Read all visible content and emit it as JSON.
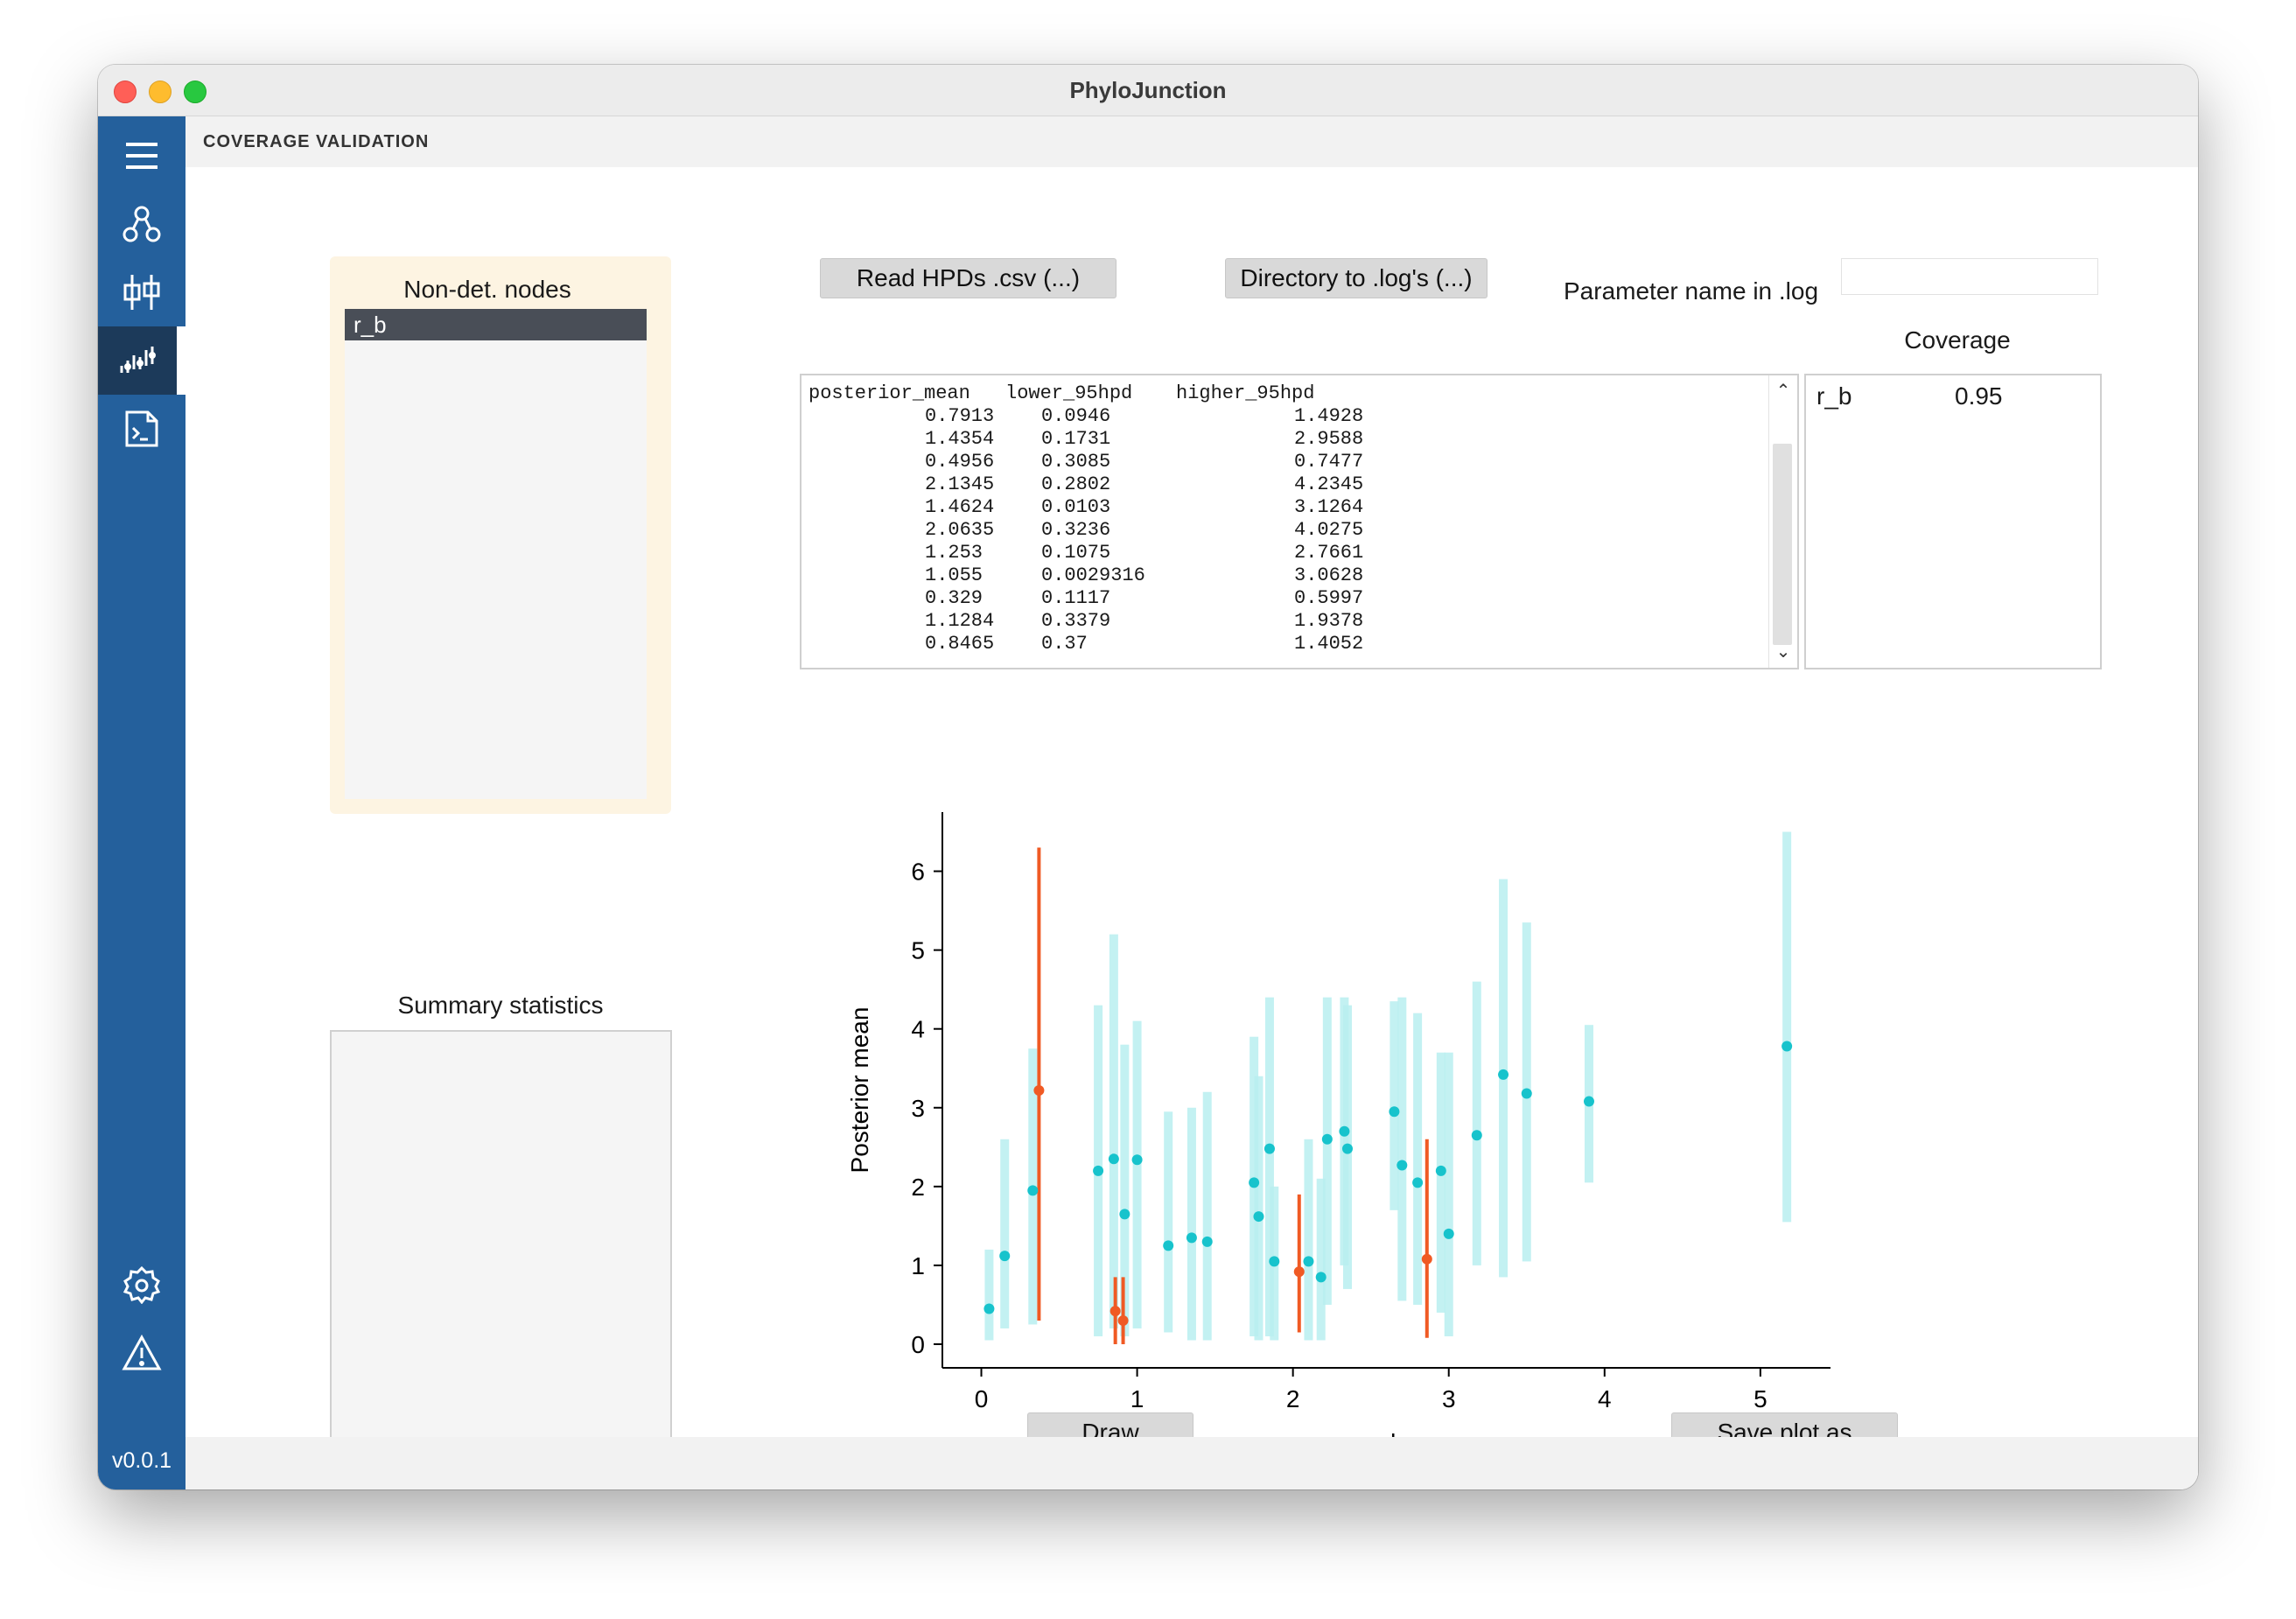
{
  "window": {
    "title": "PhyloJunction"
  },
  "sidebar": {
    "items": [
      {
        "icon": "menu-icon"
      },
      {
        "icon": "network-icon"
      },
      {
        "icon": "compare-icon"
      },
      {
        "icon": "coverage-chart-icon",
        "active": true
      },
      {
        "icon": "script-file-icon"
      }
    ],
    "bottom_items": [
      {
        "icon": "settings-gear-icon"
      },
      {
        "icon": "warning-icon"
      }
    ],
    "version": "v0.0.1"
  },
  "page": {
    "title": "COVERAGE VALIDATION"
  },
  "nodes_panel": {
    "title": "Non-det. nodes",
    "items": [
      "r_b"
    ],
    "selected": "r_b"
  },
  "summary": {
    "title": "Summary statistics"
  },
  "buttons": {
    "read_hpds": "Read HPDs .csv (...)",
    "directory_logs": "Directory to .log's (...)",
    "draw": "Draw",
    "save_plot": "Save plot as"
  },
  "param_field": {
    "label": "Parameter name in .log",
    "value": ""
  },
  "coverage": {
    "title": "Coverage",
    "rows": [
      {
        "name": "r_b",
        "value": "0.95"
      }
    ]
  },
  "hpd_table": {
    "columns": [
      "posterior_mean",
      "lower_95hpd",
      "higher_95hpd"
    ],
    "rows": [
      [
        "0.7913",
        "0.0946",
        "1.4928"
      ],
      [
        "1.4354",
        "0.1731",
        "2.9588"
      ],
      [
        "0.4956",
        "0.3085",
        "0.7477"
      ],
      [
        "2.1345",
        "0.2802",
        "4.2345"
      ],
      [
        "1.4624",
        "0.0103",
        "3.1264"
      ],
      [
        "2.0635",
        "0.3236",
        "4.0275"
      ],
      [
        "1.253",
        "0.1075",
        "2.7661"
      ],
      [
        "1.055",
        "0.0029316",
        "3.0628"
      ],
      [
        "0.329",
        "0.1117",
        "0.5997"
      ],
      [
        "1.1284",
        "0.3379",
        "1.9378"
      ],
      [
        "0.8465",
        "0.37",
        "1.4052"
      ]
    ]
  },
  "chart_data": {
    "type": "scatter",
    "xlabel": "r_b",
    "ylabel": "Posterior mean",
    "xlim": [
      -0.25,
      5.45
    ],
    "ylim": [
      -0.3,
      6.75
    ],
    "xticks": [
      0,
      1,
      2,
      3,
      4,
      5
    ],
    "yticks": [
      0,
      1,
      2,
      3,
      4,
      5,
      6
    ],
    "colors": {
      "covered": "#17c3cc",
      "covered_interval": "#b8eef0",
      "not_covered": "#f05a24"
    },
    "series": [
      {
        "points": [
          {
            "x": 5.17,
            "y": 3.78,
            "lo": 1.55,
            "hi": 6.5
          },
          {
            "x": 3.9,
            "y": 3.08,
            "lo": 2.05,
            "hi": 4.05
          },
          {
            "x": 3.5,
            "y": 3.18,
            "lo": 1.05,
            "hi": 5.35
          },
          {
            "x": 3.35,
            "y": 3.42,
            "lo": 0.85,
            "hi": 5.9
          },
          {
            "x": 3.18,
            "y": 2.65,
            "lo": 1.0,
            "hi": 4.6
          },
          {
            "x": 3.0,
            "y": 1.4,
            "lo": 0.1,
            "hi": 3.7
          },
          {
            "x": 2.95,
            "y": 2.2,
            "lo": 0.4,
            "hi": 3.7
          },
          {
            "x": 2.8,
            "y": 2.05,
            "lo": 0.5,
            "hi": 4.2
          },
          {
            "x": 2.7,
            "y": 2.27,
            "lo": 0.55,
            "hi": 4.4
          },
          {
            "x": 2.65,
            "y": 2.95,
            "lo": 1.7,
            "hi": 4.35
          },
          {
            "x": 2.35,
            "y": 2.48,
            "lo": 0.7,
            "hi": 4.3
          },
          {
            "x": 2.33,
            "y": 2.7,
            "lo": 1.0,
            "hi": 4.4
          },
          {
            "x": 2.22,
            "y": 2.6,
            "lo": 0.5,
            "hi": 4.4
          },
          {
            "x": 2.18,
            "y": 0.85,
            "lo": 0.05,
            "hi": 2.1
          },
          {
            "x": 2.1,
            "y": 1.05,
            "lo": 0.05,
            "hi": 2.6
          },
          {
            "x": 1.88,
            "y": 1.05,
            "lo": 0.05,
            "hi": 2.0
          },
          {
            "x": 1.85,
            "y": 2.48,
            "lo": 0.1,
            "hi": 4.4
          },
          {
            "x": 1.78,
            "y": 1.62,
            "lo": 0.05,
            "hi": 3.4
          },
          {
            "x": 1.75,
            "y": 2.05,
            "lo": 0.1,
            "hi": 3.9
          },
          {
            "x": 1.45,
            "y": 1.3,
            "lo": 0.05,
            "hi": 3.2
          },
          {
            "x": 1.35,
            "y": 1.35,
            "lo": 0.05,
            "hi": 3.0
          },
          {
            "x": 1.2,
            "y": 1.25,
            "lo": 0.15,
            "hi": 2.95
          },
          {
            "x": 1.0,
            "y": 2.34,
            "lo": 0.2,
            "hi": 4.1
          },
          {
            "x": 0.92,
            "y": 1.65,
            "lo": 0.1,
            "hi": 3.8
          },
          {
            "x": 0.85,
            "y": 2.35,
            "lo": 0.2,
            "hi": 5.2
          },
          {
            "x": 0.75,
            "y": 2.2,
            "lo": 0.1,
            "hi": 4.3
          },
          {
            "x": 0.33,
            "y": 1.95,
            "lo": 0.25,
            "hi": 3.75
          },
          {
            "x": 0.15,
            "y": 1.12,
            "lo": 0.2,
            "hi": 2.6
          },
          {
            "x": 0.05,
            "y": 0.45,
            "lo": 0.05,
            "hi": 1.2
          }
        ]
      },
      {
        "points": [
          {
            "x": 0.37,
            "y": 3.22,
            "lo": 0.3,
            "hi": 6.3
          },
          {
            "x": 0.86,
            "y": 0.42,
            "lo": 0.0,
            "hi": 0.85
          },
          {
            "x": 0.91,
            "y": 0.3,
            "lo": 0.0,
            "hi": 0.85
          },
          {
            "x": 2.04,
            "y": 0.92,
            "lo": 0.15,
            "hi": 1.9
          },
          {
            "x": 2.86,
            "y": 1.08,
            "lo": 0.08,
            "hi": 2.6
          }
        ]
      }
    ]
  }
}
